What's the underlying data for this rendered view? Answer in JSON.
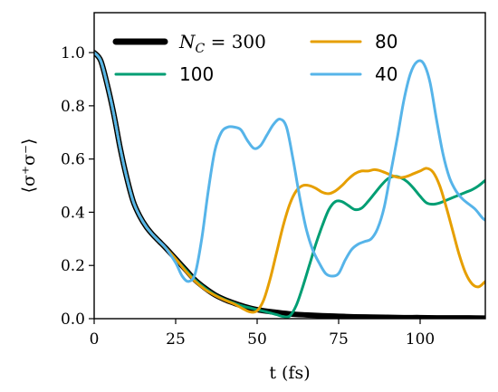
{
  "chart_data": {
    "type": "line",
    "xlabel": "t (fs)",
    "ylabel": "⟨σ⁺σ⁻⟩",
    "xlim": [
      0,
      120
    ],
    "ylim": [
      0,
      1.15
    ],
    "xticks": [
      "0",
      "25",
      "50",
      "75",
      "100"
    ],
    "xtick_values": [
      0,
      25,
      50,
      75,
      100
    ],
    "yticks": [
      "0.0",
      "0.2",
      "0.4",
      "0.6",
      "0.8",
      "1.0"
    ],
    "ytick_values": [
      0,
      0.2,
      0.4,
      0.6,
      0.8,
      1.0
    ],
    "grid": false,
    "legend_placement": "top",
    "series": [
      {
        "name": "N_C = 300",
        "legend_label": "N",
        "legend_sub": "C",
        "legend_rest": " = 300",
        "color": "#000000",
        "x": [
          0,
          2,
          4,
          6,
          8,
          10,
          12,
          14,
          16,
          18,
          20,
          22,
          25,
          28,
          31,
          34,
          37,
          40,
          43,
          46,
          50,
          55,
          60,
          65,
          70,
          75,
          80,
          85,
          90,
          95,
          100,
          105,
          110,
          115,
          120
        ],
        "y": [
          1.0,
          0.97,
          0.88,
          0.77,
          0.64,
          0.53,
          0.44,
          0.385,
          0.345,
          0.315,
          0.29,
          0.265,
          0.225,
          0.185,
          0.145,
          0.115,
          0.09,
          0.072,
          0.058,
          0.046,
          0.034,
          0.025,
          0.018,
          0.014,
          0.011,
          0.009,
          0.007,
          0.006,
          0.005,
          0.004,
          0.004,
          0.003,
          0.003,
          0.003,
          0.002
        ]
      },
      {
        "name": "100",
        "color": "#009E73",
        "x": [
          0,
          2,
          4,
          6,
          8,
          10,
          12,
          14,
          16,
          18,
          20,
          22,
          25,
          28,
          31,
          34,
          37,
          40,
          43,
          46,
          50,
          53,
          56,
          58,
          60,
          62,
          64,
          66,
          68,
          70,
          72,
          74,
          76,
          78,
          80,
          82,
          84,
          86,
          88,
          90,
          92,
          94,
          96,
          98,
          100,
          102,
          104,
          106,
          108,
          110,
          112,
          114,
          116,
          118,
          120
        ],
        "y": [
          1.0,
          0.97,
          0.88,
          0.77,
          0.64,
          0.53,
          0.44,
          0.385,
          0.345,
          0.315,
          0.29,
          0.265,
          0.225,
          0.185,
          0.145,
          0.115,
          0.09,
          0.072,
          0.058,
          0.046,
          0.034,
          0.025,
          0.015,
          0.008,
          0.01,
          0.05,
          0.12,
          0.2,
          0.28,
          0.35,
          0.41,
          0.44,
          0.44,
          0.425,
          0.41,
          0.415,
          0.44,
          0.47,
          0.5,
          0.525,
          0.535,
          0.53,
          0.515,
          0.49,
          0.46,
          0.435,
          0.43,
          0.435,
          0.445,
          0.455,
          0.465,
          0.475,
          0.485,
          0.5,
          0.52
        ]
      },
      {
        "name": "80",
        "color": "#E69F00",
        "x": [
          0,
          2,
          4,
          6,
          8,
          10,
          12,
          14,
          16,
          18,
          20,
          22,
          25,
          28,
          31,
          34,
          37,
          40,
          43,
          46,
          48,
          50,
          52,
          54,
          56,
          58,
          60,
          62,
          64,
          66,
          68,
          70,
          72,
          74,
          76,
          78,
          80,
          82,
          84,
          86,
          88,
          90,
          92,
          94,
          96,
          98,
          100,
          102,
          104,
          106,
          108,
          110,
          112,
          114,
          116,
          118,
          120
        ],
        "y": [
          1.0,
          0.97,
          0.88,
          0.77,
          0.64,
          0.53,
          0.44,
          0.385,
          0.345,
          0.315,
          0.29,
          0.265,
          0.225,
          0.18,
          0.14,
          0.11,
          0.088,
          0.07,
          0.055,
          0.035,
          0.025,
          0.03,
          0.07,
          0.15,
          0.25,
          0.35,
          0.43,
          0.48,
          0.5,
          0.5,
          0.49,
          0.475,
          0.47,
          0.48,
          0.5,
          0.525,
          0.545,
          0.555,
          0.555,
          0.56,
          0.555,
          0.545,
          0.535,
          0.53,
          0.535,
          0.545,
          0.555,
          0.565,
          0.55,
          0.5,
          0.42,
          0.33,
          0.24,
          0.17,
          0.13,
          0.12,
          0.14
        ]
      },
      {
        "name": "40",
        "color": "#56B4E9",
        "x": [
          0,
          2,
          4,
          6,
          8,
          10,
          12,
          14,
          16,
          18,
          20,
          22,
          25,
          27,
          29,
          31,
          33,
          35,
          37,
          39,
          41,
          43,
          45,
          47,
          49,
          51,
          53,
          55,
          57,
          59,
          61,
          63,
          65,
          67,
          69,
          71,
          73,
          75,
          77,
          79,
          81,
          83,
          85,
          87,
          89,
          91,
          93,
          95,
          97,
          99,
          101,
          103,
          105,
          107,
          109,
          111,
          113,
          115,
          117,
          119,
          120
        ],
        "y": [
          1.0,
          0.97,
          0.88,
          0.77,
          0.64,
          0.53,
          0.44,
          0.385,
          0.345,
          0.315,
          0.29,
          0.265,
          0.21,
          0.16,
          0.14,
          0.17,
          0.3,
          0.48,
          0.63,
          0.7,
          0.72,
          0.72,
          0.71,
          0.67,
          0.64,
          0.65,
          0.69,
          0.73,
          0.75,
          0.72,
          0.6,
          0.46,
          0.34,
          0.26,
          0.21,
          0.17,
          0.16,
          0.17,
          0.22,
          0.26,
          0.28,
          0.29,
          0.3,
          0.34,
          0.42,
          0.55,
          0.68,
          0.82,
          0.92,
          0.965,
          0.96,
          0.89,
          0.75,
          0.62,
          0.53,
          0.48,
          0.45,
          0.43,
          0.41,
          0.38,
          0.37
        ]
      }
    ]
  }
}
